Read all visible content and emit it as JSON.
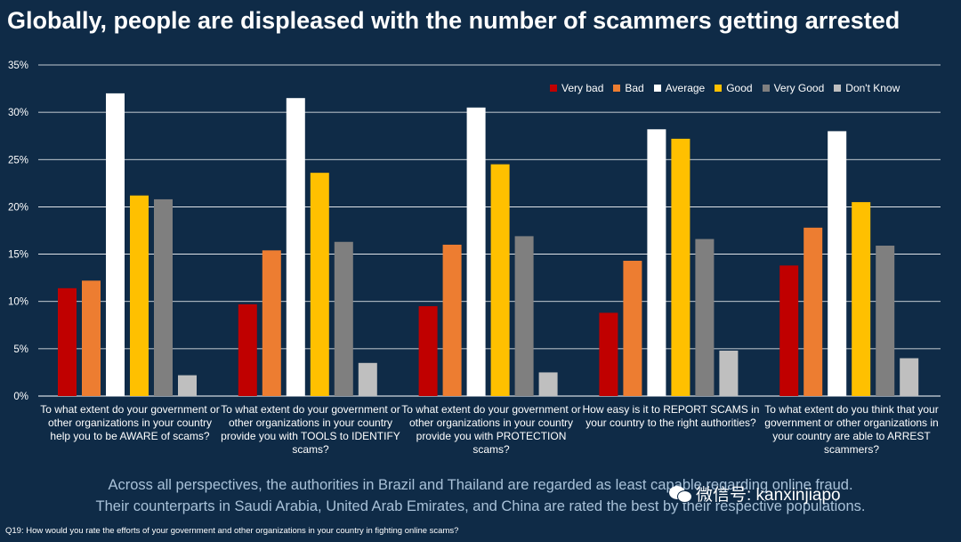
{
  "title": "Globally, people are displeased with the number of scammers getting arrested",
  "chart_data": {
    "type": "bar",
    "categories": [
      "To what extent do your government or other organizations in your country help you to be AWARE of scams?",
      "To what extent do your government or other organizations in your country provide you with TOOLS to IDENTIFY scams?",
      "To what extent do your government or other organizations in your country provide you with PROTECTION scams?",
      "How easy is it to REPORT SCAMS in your country to the right authorities?",
      "To what extent do you think that your government or other organizations in your country are able to ARREST scammers?"
    ],
    "series": [
      {
        "name": "Very bad",
        "color": "#c00000",
        "values": [
          11.4,
          9.7,
          9.5,
          8.8,
          13.8
        ]
      },
      {
        "name": "Bad",
        "color": "#ed7d31",
        "values": [
          12.2,
          15.4,
          16.0,
          14.3,
          17.8
        ]
      },
      {
        "name": "Average",
        "color": "#ffffff",
        "values": [
          32.0,
          31.5,
          30.5,
          28.2,
          28.0
        ]
      },
      {
        "name": "Good",
        "color": "#ffc000",
        "values": [
          21.2,
          23.6,
          24.5,
          27.2,
          20.5
        ]
      },
      {
        "name": "Very Good",
        "color": "#7f7f7f",
        "values": [
          20.8,
          16.3,
          16.9,
          16.6,
          15.9
        ]
      },
      {
        "name": "Don't Know",
        "color": "#bfbfbf",
        "values": [
          2.2,
          3.5,
          2.5,
          4.8,
          4.0
        ]
      }
    ],
    "yticks": [
      "0%",
      "5%",
      "10%",
      "15%",
      "20%",
      "25%",
      "30%",
      "35%"
    ],
    "ylim": [
      0,
      35
    ],
    "grid": true,
    "legend_position": "top-right"
  },
  "x_labels": [
    "To what extent do your government or other organizations in your country help you to be AWARE of scams?",
    "To what extent do your government or other organizations in your country provide you with TOOLS to IDENTIFY scams?",
    "To what extent do your government or other organizations in your country provide you with PROTECTION scams?",
    "How easy is it to REPORT SCAMS in your country to the right authorities?",
    "To what extent do you think that your government or other organizations in your country are able to ARREST scammers?"
  ],
  "caption_line1": "Across all perspectives, the authorities in Brazil and Thailand are regarded as least capable regarding online fraud.",
  "caption_line2": "Their counterparts in Saudi Arabia, United Arab Emirates, and China are rated the best by their respective populations.",
  "footnote": "Q19: How would you rate the efforts of your government and other organizations in your country in fighting online scams?",
  "watermark": "微信号: kanxinjiapo"
}
